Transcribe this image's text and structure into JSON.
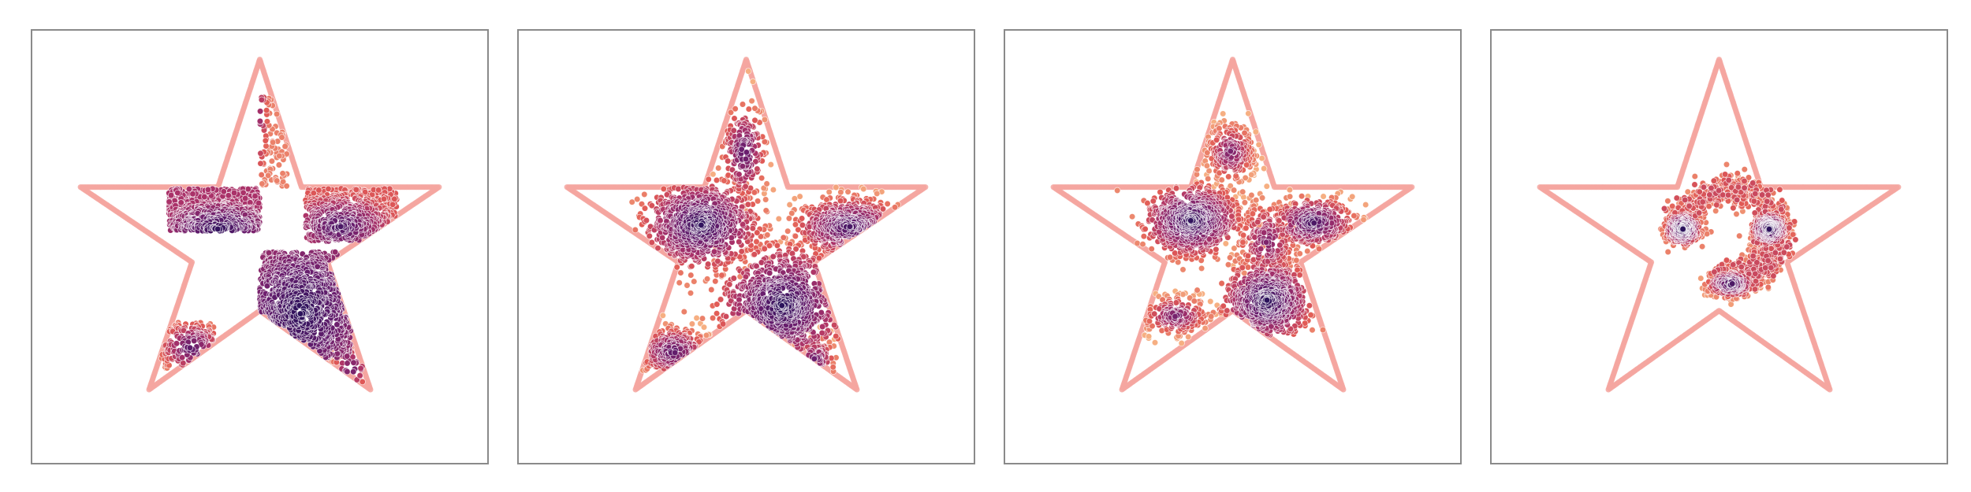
{
  "chart_data": [
    {
      "type": "scatter",
      "panel": 1,
      "title": "",
      "xlabel": "",
      "ylabel": "",
      "xlim": [
        -1.0,
        1.0
      ],
      "ylim": [
        -1.05,
        1.0
      ],
      "grid": false,
      "legend": "none",
      "boundary": {
        "shape": "star",
        "color": "#f4a6a0",
        "vertices": [
          [
            0.0,
            0.86
          ],
          [
            0.183,
            0.257
          ],
          [
            0.785,
            0.257
          ],
          [
            0.297,
            -0.098
          ],
          [
            0.485,
            -0.7
          ],
          [
            0.0,
            -0.327
          ],
          [
            -0.485,
            -0.7
          ],
          [
            -0.297,
            -0.098
          ],
          [
            -0.785,
            0.257
          ],
          [
            -0.183,
            0.257
          ]
        ]
      },
      "series": [
        {
          "kind": "density-blobs",
          "colormap": "magma",
          "blobs": [
            {
              "cx": -0.18,
              "cy": 0.06,
              "sx": 0.12,
              "sy": 0.1,
              "w": 1.0,
              "dense": 0.9
            },
            {
              "cx": 0.18,
              "cy": -0.33,
              "sx": 0.14,
              "sy": 0.13,
              "w": 1.1,
              "dense": 1.0
            },
            {
              "cx": 0.35,
              "cy": 0.07,
              "sx": 0.14,
              "sy": 0.08,
              "w": 0.7,
              "dense": 0.7
            },
            {
              "cx": -0.03,
              "cy": 0.58,
              "sx": 0.02,
              "sy": 0.1,
              "w": 0.12,
              "dense": 0.55
            },
            {
              "cx": -0.3,
              "cy": -0.5,
              "sx": 0.08,
              "sy": 0.05,
              "w": 0.2,
              "dense": 0.55
            },
            {
              "cx": 0.4,
              "cy": -0.6,
              "sx": 0.02,
              "sy": 0.05,
              "w": 0.05,
              "dense": 0.5
            }
          ],
          "cells": [
            [
              -0.4,
              0.05,
              0.0,
              0.25
            ],
            [
              0.0,
              -0.55,
              0.4,
              -0.05
            ],
            [
              0.2,
              0.0,
              0.6,
              0.25
            ],
            [
              0.0,
              0.25,
              0.12,
              0.8
            ],
            [
              -0.45,
              -0.6,
              -0.2,
              -0.38
            ],
            [
              0.3,
              -0.7,
              0.45,
              -0.5
            ]
          ]
        }
      ]
    },
    {
      "type": "scatter",
      "panel": 2,
      "title": "",
      "xlabel": "",
      "ylabel": "",
      "xlim": [
        -1.0,
        1.0
      ],
      "ylim": [
        -1.05,
        1.0
      ],
      "grid": false,
      "legend": "none",
      "boundary": {
        "shape": "star",
        "color": "#f4a6a0",
        "vertices": [
          [
            0.0,
            0.86
          ],
          [
            0.183,
            0.257
          ],
          [
            0.785,
            0.257
          ],
          [
            0.297,
            -0.098
          ],
          [
            0.485,
            -0.7
          ],
          [
            0.0,
            -0.327
          ],
          [
            -0.485,
            -0.7
          ],
          [
            -0.297,
            -0.098
          ],
          [
            -0.785,
            0.257
          ],
          [
            -0.183,
            0.257
          ]
        ]
      },
      "series": [
        {
          "kind": "density-blobs",
          "colormap": "magma",
          "blobs": [
            {
              "cx": -0.2,
              "cy": 0.08,
              "sx": 0.12,
              "sy": 0.1,
              "w": 1.0,
              "dense": 0.95
            },
            {
              "cx": 0.16,
              "cy": -0.3,
              "sx": 0.13,
              "sy": 0.13,
              "w": 1.0,
              "dense": 1.0
            },
            {
              "cx": 0.45,
              "cy": 0.07,
              "sx": 0.12,
              "sy": 0.07,
              "w": 0.6,
              "dense": 0.75
            },
            {
              "cx": -0.01,
              "cy": 0.42,
              "sx": 0.05,
              "sy": 0.12,
              "w": 0.25,
              "dense": 0.6
            },
            {
              "cx": -0.32,
              "cy": -0.52,
              "sx": 0.08,
              "sy": 0.06,
              "w": 0.25,
              "dense": 0.6
            },
            {
              "cx": 0.3,
              "cy": -0.56,
              "sx": 0.05,
              "sy": 0.06,
              "w": 0.1,
              "dense": 0.5
            }
          ]
        }
      ]
    },
    {
      "type": "scatter",
      "panel": 3,
      "title": "",
      "xlabel": "",
      "ylabel": "",
      "xlim": [
        -1.0,
        1.0
      ],
      "ylim": [
        -1.05,
        1.0
      ],
      "grid": false,
      "legend": "none",
      "boundary": {
        "shape": "star",
        "color": "#f4a6a0",
        "vertices": [
          [
            0.0,
            0.86
          ],
          [
            0.183,
            0.257
          ],
          [
            0.785,
            0.257
          ],
          [
            0.297,
            -0.098
          ],
          [
            0.485,
            -0.7
          ],
          [
            0.0,
            -0.327
          ],
          [
            -0.485,
            -0.7
          ],
          [
            -0.297,
            -0.098
          ],
          [
            -0.785,
            0.257
          ],
          [
            -0.183,
            0.257
          ]
        ]
      },
      "series": [
        {
          "kind": "density-blobs",
          "colormap": "magma",
          "blobs": [
            {
              "cx": -0.18,
              "cy": 0.1,
              "sx": 0.1,
              "sy": 0.08,
              "w": 1.0,
              "dense": 0.95
            },
            {
              "cx": 0.15,
              "cy": -0.28,
              "sx": 0.09,
              "sy": 0.09,
              "w": 0.9,
              "dense": 1.0
            },
            {
              "cx": 0.35,
              "cy": 0.09,
              "sx": 0.09,
              "sy": 0.06,
              "w": 0.45,
              "dense": 0.75
            },
            {
              "cx": -0.01,
              "cy": 0.42,
              "sx": 0.06,
              "sy": 0.08,
              "w": 0.3,
              "dense": 0.35
            },
            {
              "cx": -0.25,
              "cy": -0.35,
              "sx": 0.08,
              "sy": 0.05,
              "w": 0.25,
              "dense": 0.4
            },
            {
              "cx": 0.15,
              "cy": 0.0,
              "sx": 0.08,
              "sy": 0.12,
              "w": 0.35,
              "dense": 0.3
            }
          ]
        }
      ]
    },
    {
      "type": "scatter",
      "panel": 4,
      "title": "",
      "xlabel": "",
      "ylabel": "",
      "xlim": [
        -1.0,
        1.0
      ],
      "ylim": [
        -1.05,
        1.0
      ],
      "grid": false,
      "legend": "none",
      "boundary": {
        "shape": "star",
        "color": "#f4a6a0",
        "vertices": [
          [
            0.0,
            0.86
          ],
          [
            0.183,
            0.257
          ],
          [
            0.785,
            0.257
          ],
          [
            0.297,
            -0.098
          ],
          [
            0.485,
            -0.7
          ],
          [
            0.0,
            -0.327
          ],
          [
            -0.485,
            -0.7
          ],
          [
            -0.297,
            -0.098
          ],
          [
            -0.785,
            0.257
          ],
          [
            -0.183,
            0.257
          ]
        ]
      },
      "series": [
        {
          "kind": "density-blobs",
          "colormap": "magma",
          "blobs": [
            {
              "cx": -0.16,
              "cy": 0.06,
              "sx": 0.035,
              "sy": 0.035,
              "w": 0.5,
              "dense": 1.0
            },
            {
              "cx": 0.22,
              "cy": 0.06,
              "sx": 0.035,
              "sy": 0.035,
              "w": 0.5,
              "dense": 1.0
            },
            {
              "cx": 0.05,
              "cy": -0.2,
              "sx": 0.05,
              "sy": 0.03,
              "w": 0.3,
              "dense": 0.8
            }
          ],
          "arcs": [
            {
              "cx": 0.05,
              "cy": 0.04,
              "r": 0.21,
              "a0": -80,
              "a1": 190,
              "spread": 0.035,
              "w": 1.0
            },
            {
              "cx": 0.09,
              "cy": -0.04,
              "r": 0.13,
              "a0": -140,
              "a1": 40,
              "spread": 0.03,
              "w": 0.5
            }
          ]
        }
      ]
    }
  ]
}
